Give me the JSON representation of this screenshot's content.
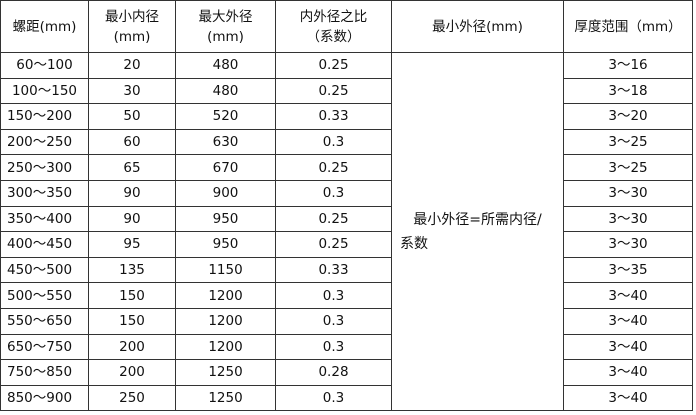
{
  "headers": [
    "螺距(mm)",
    "最小内径\n(mm)",
    "最大外径\n(mm)",
    "内外径之比\n（系数）",
    "最小外径(mm)",
    "厚度范围（mm）"
  ],
  "header_lines": [
    [
      "螺距(mm)"
    ],
    [
      "最小内径",
      "(mm)"
    ],
    [
      "最大外径",
      "(mm)"
    ],
    [
      "内外径之比",
      "（系数）"
    ],
    [
      "最小外径(mm)"
    ],
    [
      "厚度范围（mm）"
    ]
  ],
  "merged_note_lines": [
    "最小外径=所需内径/",
    "系数"
  ],
  "rows": [
    [
      "60～100",
      "20",
      "480",
      "0.25",
      "3～16"
    ],
    [
      "100～150",
      "30",
      "480",
      "0.25",
      "3～18"
    ],
    [
      "150～200",
      "50",
      "520",
      "0.33",
      "3～20"
    ],
    [
      "200～250",
      "60",
      "630",
      "0.3",
      "3～25"
    ],
    [
      "250～300",
      "65",
      "670",
      "0.25",
      "3～25"
    ],
    [
      "300～350",
      "90",
      "900",
      "0.3",
      "3～30"
    ],
    [
      "350～400",
      "90",
      "950",
      "0.25",
      "3～30"
    ],
    [
      "400～450",
      "95",
      "950",
      "0.25",
      "3～30"
    ],
    [
      "450～500",
      "135",
      "1150",
      "0.33",
      "3～35"
    ],
    [
      "500～550",
      "150",
      "1200",
      "0.3",
      "3～40"
    ],
    [
      "550～650",
      "150",
      "1200",
      "0.3",
      "3～40"
    ],
    [
      "650～750",
      "200",
      "1200",
      "0.3",
      "3～40"
    ],
    [
      "750～850",
      "200",
      "1250",
      "0.28",
      "3～40"
    ],
    [
      "850～900",
      "250",
      "1250",
      "0.3",
      "3～40"
    ]
  ]
}
